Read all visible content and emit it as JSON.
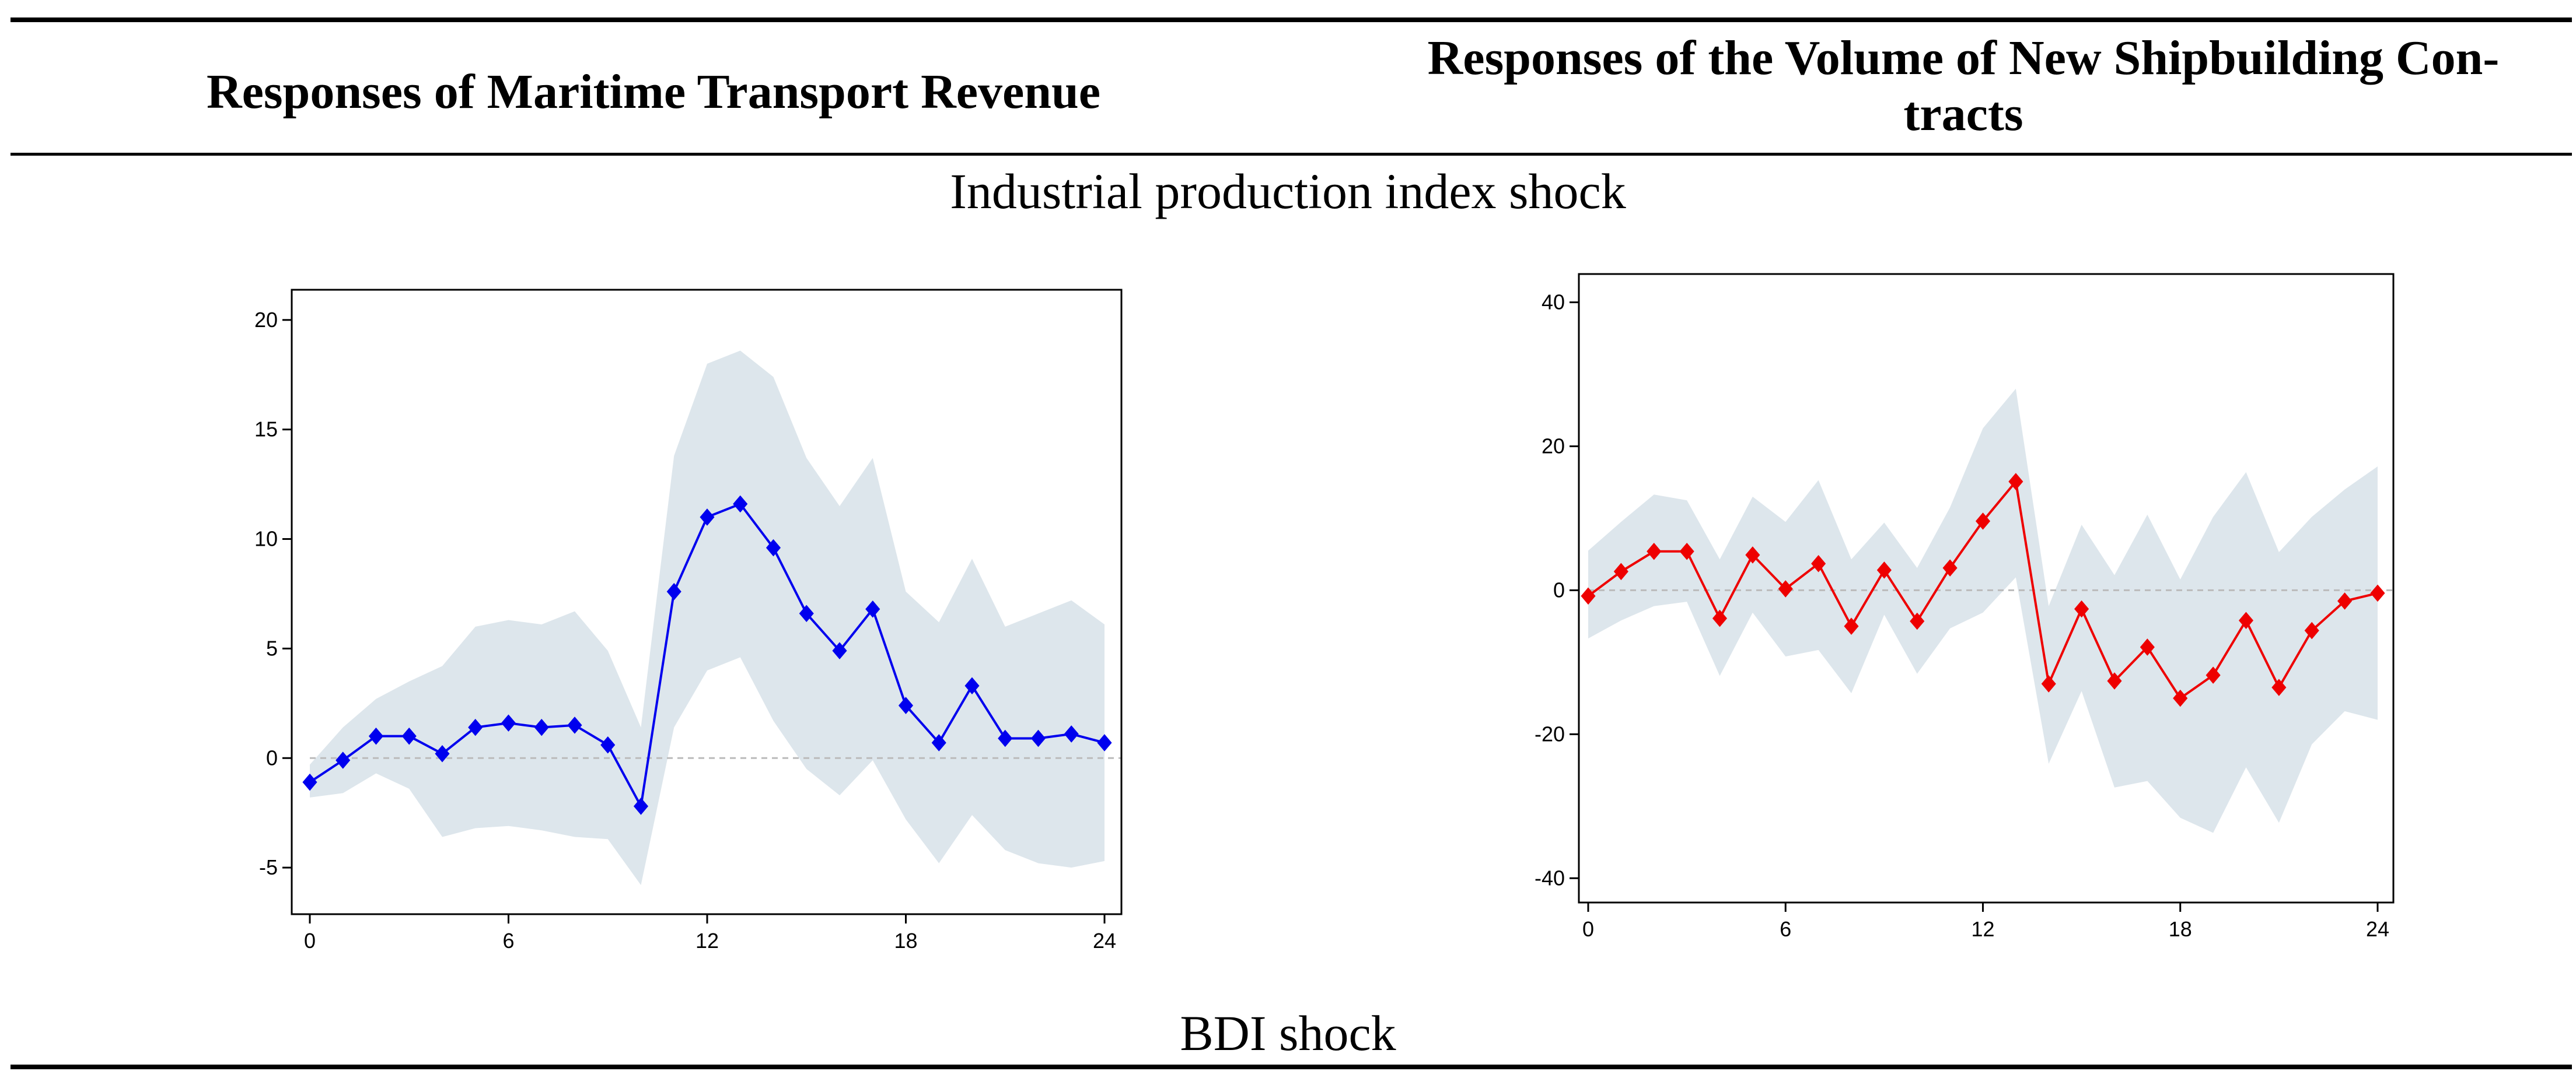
{
  "table": {
    "col1_header": "Responses of Maritime Transport Revenue",
    "col2_header_line1": "Responses of the Volume of New Shipbuilding Con-",
    "col2_header_line2": "tracts",
    "section1_label": "Industrial production index shock",
    "section2_label": "BDI shock"
  },
  "colors": {
    "band": "#dde6ec",
    "series_left": "#0000ee",
    "series_right": "#ee0000",
    "zero_line": "#bbbbbb"
  },
  "chart_data": [
    {
      "type": "line",
      "title": "",
      "xlabel": "",
      "ylabel": "",
      "xlim": [
        0,
        24
      ],
      "ylim": [
        -6.7,
        20.5
      ],
      "xticks": [
        0,
        6,
        12,
        18,
        24
      ],
      "yticks": [
        -5,
        0,
        5,
        10,
        15,
        20
      ],
      "x": [
        0,
        1,
        2,
        3,
        4,
        5,
        6,
        7,
        8,
        9,
        10,
        11,
        12,
        13,
        14,
        15,
        16,
        17,
        18,
        19,
        20,
        21,
        22,
        23,
        24
      ],
      "series": [
        {
          "name": "response",
          "values": [
            -1.1,
            -0.1,
            1.0,
            1.0,
            0.2,
            1.4,
            1.6,
            1.4,
            1.5,
            0.6,
            -2.2,
            7.6,
            11.0,
            11.6,
            9.6,
            6.6,
            4.9,
            6.8,
            2.4,
            0.7,
            3.3,
            0.9,
            0.9,
            1.1,
            0.7
          ]
        },
        {
          "name": "lower band",
          "values": [
            -1.8,
            -1.6,
            -0.7,
            -1.4,
            -3.6,
            -3.2,
            -3.1,
            -3.3,
            -3.6,
            -3.7,
            -5.8,
            1.4,
            4.0,
            4.6,
            1.7,
            -0.5,
            -1.7,
            -0.1,
            -2.8,
            -4.8,
            -2.6,
            -4.2,
            -4.8,
            -5.0,
            -4.7
          ]
        },
        {
          "name": "upper band",
          "values": [
            -0.3,
            1.4,
            2.7,
            3.5,
            4.2,
            6.0,
            6.3,
            6.1,
            6.7,
            4.9,
            1.4,
            13.8,
            18.0,
            18.6,
            17.4,
            13.7,
            11.5,
            13.7,
            7.6,
            6.2,
            9.1,
            6.0,
            6.6,
            7.2,
            6.1
          ]
        }
      ]
    },
    {
      "type": "line",
      "title": "",
      "xlabel": "",
      "ylabel": "",
      "xlim": [
        0,
        24
      ],
      "ylim": [
        -42,
        41.5
      ],
      "xticks": [
        0,
        6,
        12,
        18,
        24
      ],
      "yticks": [
        -40,
        -20,
        0,
        20,
        40
      ],
      "x": [
        0,
        1,
        2,
        3,
        4,
        5,
        6,
        7,
        8,
        9,
        10,
        11,
        12,
        13,
        14,
        15,
        16,
        17,
        18,
        19,
        20,
        21,
        22,
        23,
        24
      ],
      "series": [
        {
          "name": "response",
          "values": [
            -0.8,
            2.6,
            5.4,
            5.4,
            -3.9,
            4.9,
            0.2,
            3.7,
            -5.0,
            2.8,
            -4.3,
            3.1,
            9.6,
            15.1,
            -13.0,
            -2.6,
            -12.6,
            -7.9,
            -15.0,
            -11.8,
            -4.2,
            -13.5,
            -5.6,
            -1.5,
            -0.4
          ]
        },
        {
          "name": "lower band",
          "values": [
            -6.7,
            -4.2,
            -2.2,
            -1.6,
            -11.9,
            -3.1,
            -9.2,
            -8.3,
            -14.3,
            -3.4,
            -11.6,
            -5.3,
            -3.1,
            1.8,
            -24.1,
            -14.0,
            -27.4,
            -26.5,
            -31.6,
            -33.7,
            -24.6,
            -32.3,
            -21.4,
            -16.8,
            -18.0
          ]
        },
        {
          "name": "upper band",
          "values": [
            5.5,
            9.5,
            13.3,
            12.5,
            4.3,
            13.0,
            9.5,
            15.3,
            4.3,
            9.4,
            3.1,
            11.5,
            22.5,
            28.0,
            -2.2,
            9.1,
            2.1,
            10.5,
            1.5,
            10.2,
            16.4,
            5.3,
            10.2,
            14.0,
            17.2
          ]
        }
      ]
    }
  ]
}
